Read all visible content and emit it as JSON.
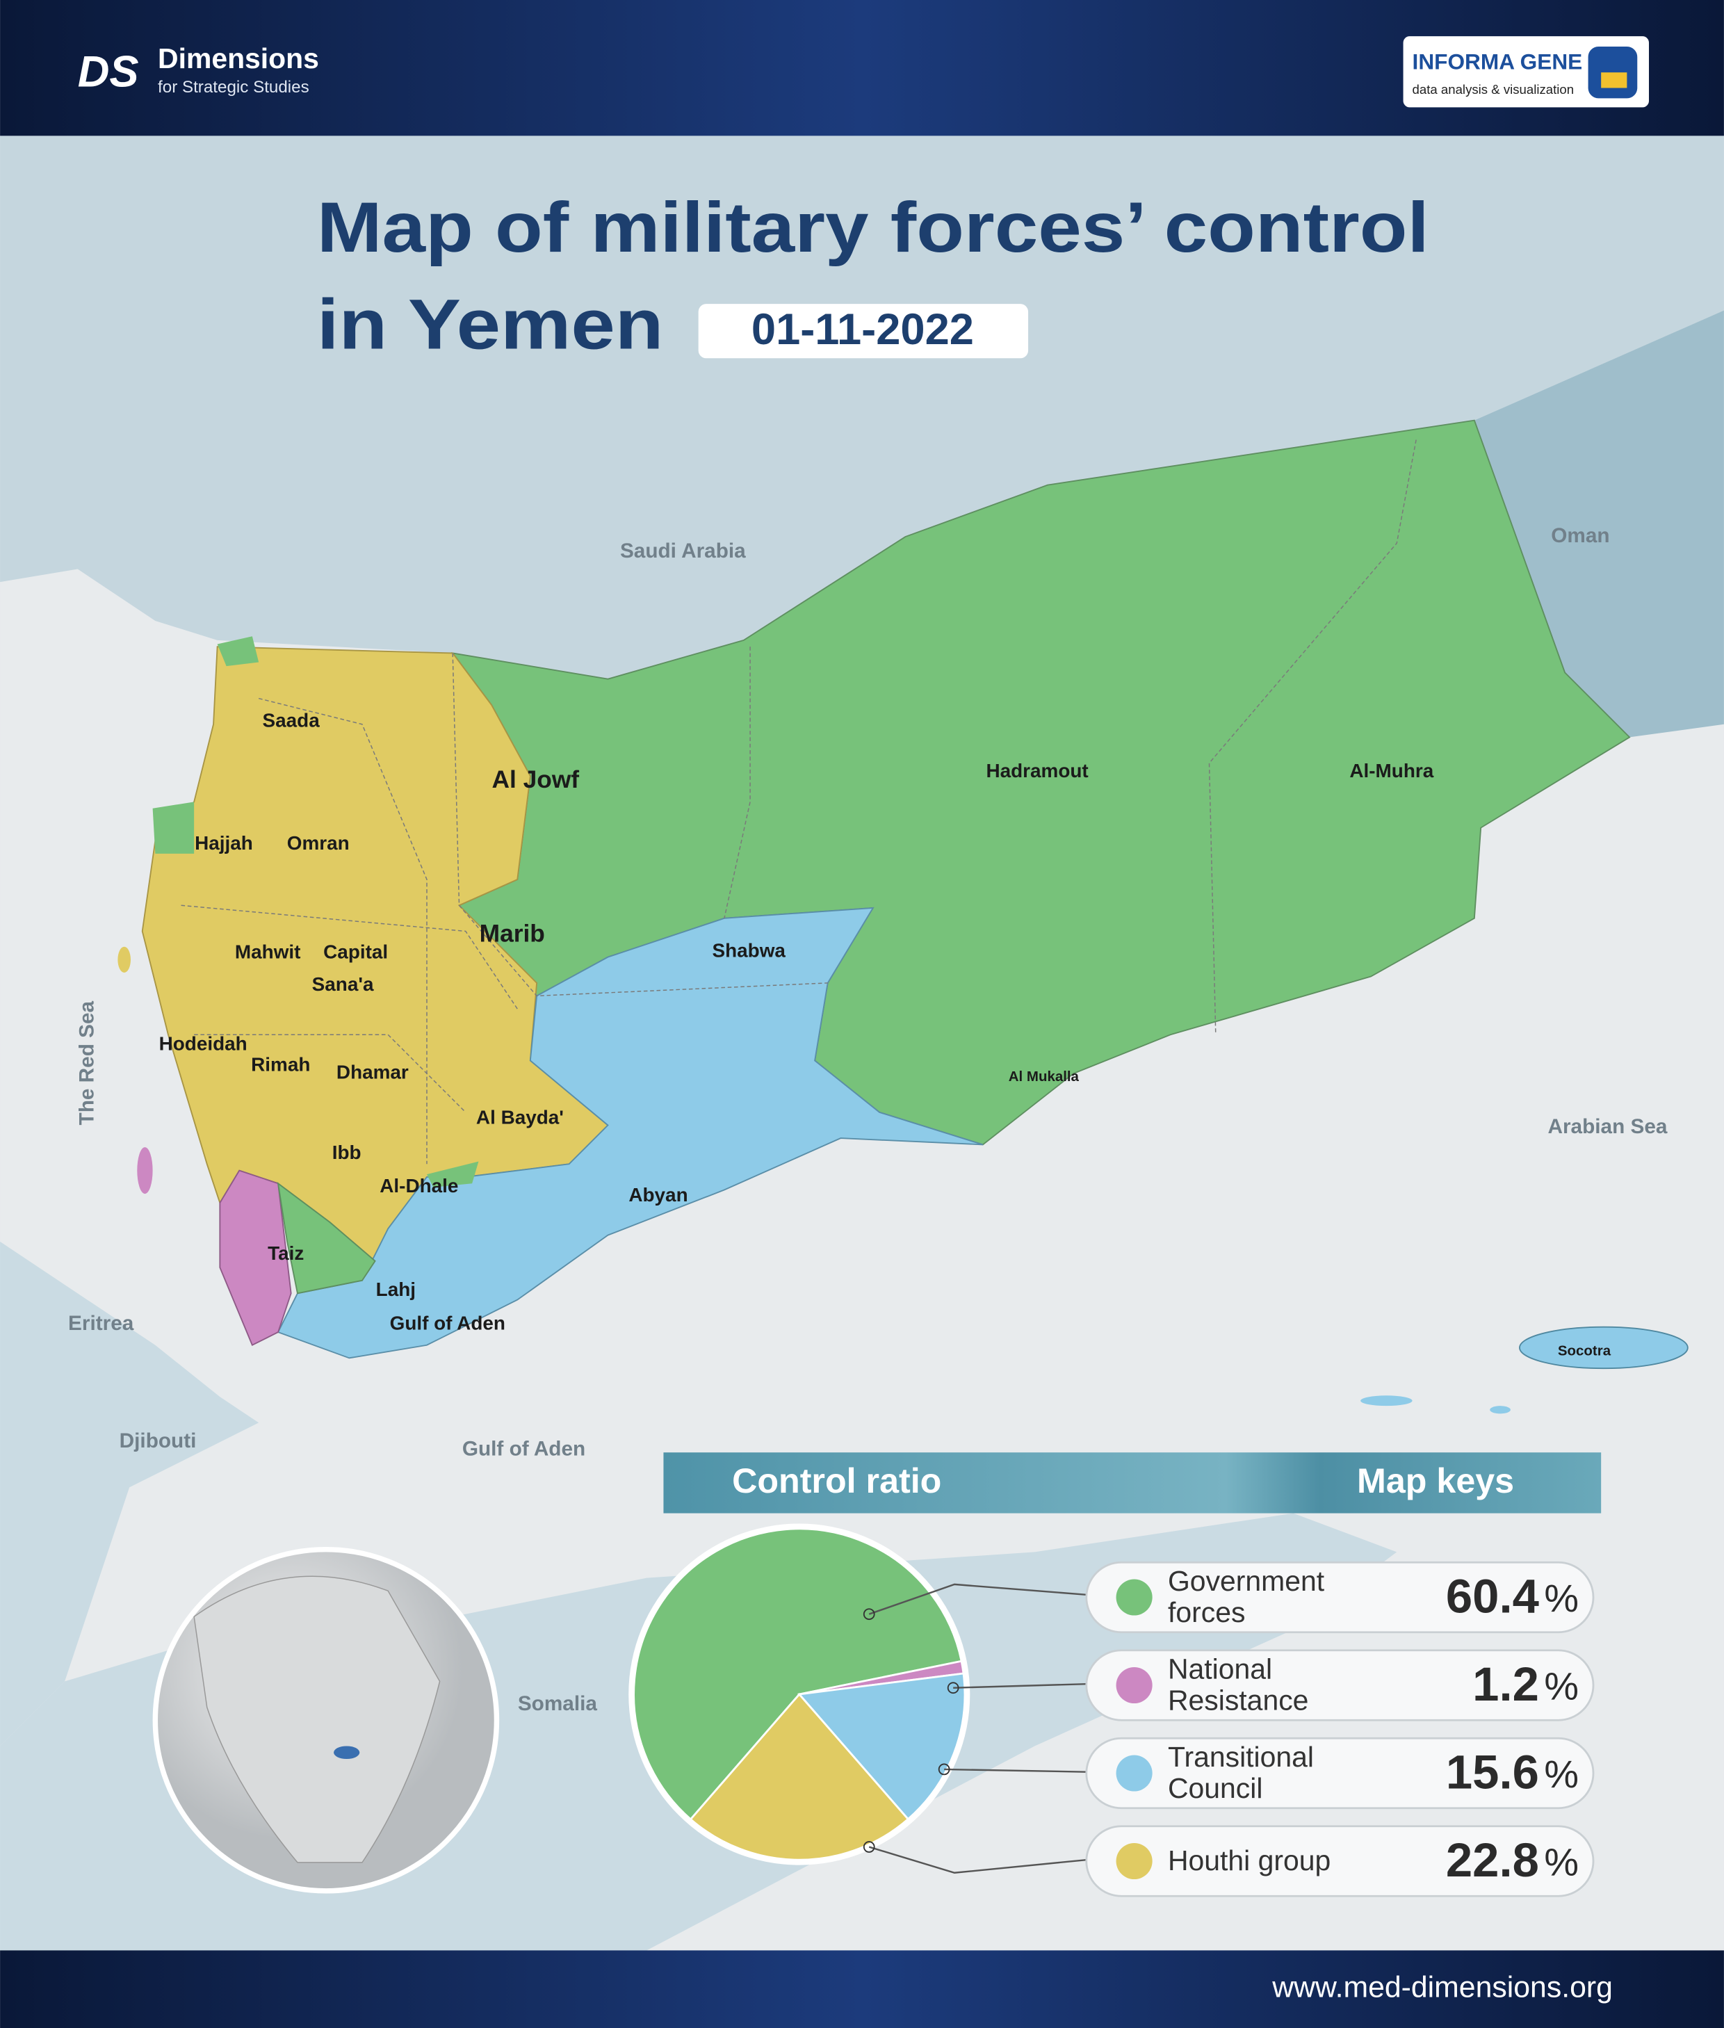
{
  "header": {
    "brand": "Dimensions",
    "brand_subtitle": "for Strategic Studies",
    "partner": "INFORMA GENE",
    "partner_subtitle": "data analysis & visualization"
  },
  "title_lines": [
    "Map of military forces’ control",
    "in Yemen"
  ],
  "date": "01-11-2022",
  "map": {
    "labels": [
      "Saudi Arabia",
      "Oman",
      "The Red Sea",
      "Eritrea",
      "Djibouti",
      "Gulf of Aden",
      "Somalia",
      "Arabian Sea",
      "Socotra",
      "Saada",
      "Al Jowf",
      "Hajjah",
      "Omran",
      "Marib",
      "Mahwit",
      "Capital",
      "Sana'a",
      "Hodeidah",
      "Rimah",
      "Dhamar",
      "Al Bayda'",
      "Ibb",
      "Al-Dhale",
      "Taiz",
      "Lahj",
      "Gulf of Aden",
      "Abyan",
      "Shabwa",
      "Hadramout",
      "Al-Muhra",
      "Al Mukalla"
    ]
  },
  "chart_data": {
    "type": "pie",
    "title": "Control ratio",
    "legend_title": "Map keys",
    "categories": [
      "Government forces",
      "National Resistance",
      "Transitional Council",
      "Houthi group"
    ],
    "values": [
      60.4,
      1.2,
      15.6,
      22.8
    ],
    "unit": "%",
    "colors": [
      "#77c27a",
      "#cc88c2",
      "#8ecbe8",
      "#e0cb63"
    ]
  },
  "footer": {
    "url": "www.med-dimensions.org"
  }
}
